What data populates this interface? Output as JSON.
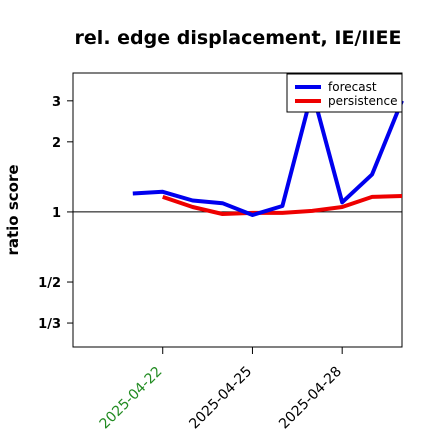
{
  "chart_data": {
    "type": "line",
    "title": "rel. edge displacement, IE/IIEE",
    "ylabel": "ratio score",
    "y_scale": "log2",
    "ylim": [
      0.263,
      3.95
    ],
    "yticks": [
      {
        "value": 0.3333,
        "label": "1/3"
      },
      {
        "value": 0.5,
        "label": "1/2"
      },
      {
        "value": 1,
        "label": "1"
      },
      {
        "value": 2,
        "label": "2"
      },
      {
        "value": 3,
        "label": "3"
      }
    ],
    "reference_line": 1,
    "xlim": [
      "2025-04-19",
      "2025-04-30"
    ],
    "xticks": [
      {
        "date": "2025-04-22",
        "label": "2025-04-22",
        "color": "#228B22"
      },
      {
        "date": "2025-04-25",
        "label": "2025-04-25",
        "color": "#000000"
      },
      {
        "date": "2025-04-28",
        "label": "2025-04-28",
        "color": "#000000"
      }
    ],
    "legend": {
      "position": "top-right"
    },
    "series": [
      {
        "name": "forecast",
        "color": "#0000ee",
        "x": [
          "2025-04-21",
          "2025-04-22",
          "2025-04-23",
          "2025-04-24",
          "2025-04-25",
          "2025-04-26",
          "2025-04-27",
          "2025-04-28",
          "2025-04-29",
          "2025-04-30"
        ],
        "y": [
          1.2,
          1.22,
          1.12,
          1.09,
          0.97,
          1.06,
          3.3,
          1.1,
          1.45,
          3.0
        ]
      },
      {
        "name": "persistence",
        "color": "#ee0000",
        "x": [
          "2025-04-22",
          "2025-04-23",
          "2025-04-24",
          "2025-04-25",
          "2025-04-26",
          "2025-04-27",
          "2025-04-28",
          "2025-04-29",
          "2025-04-30"
        ],
        "y": [
          1.16,
          1.05,
          0.98,
          0.99,
          0.99,
          1.01,
          1.05,
          1.16,
          1.17
        ]
      }
    ]
  }
}
